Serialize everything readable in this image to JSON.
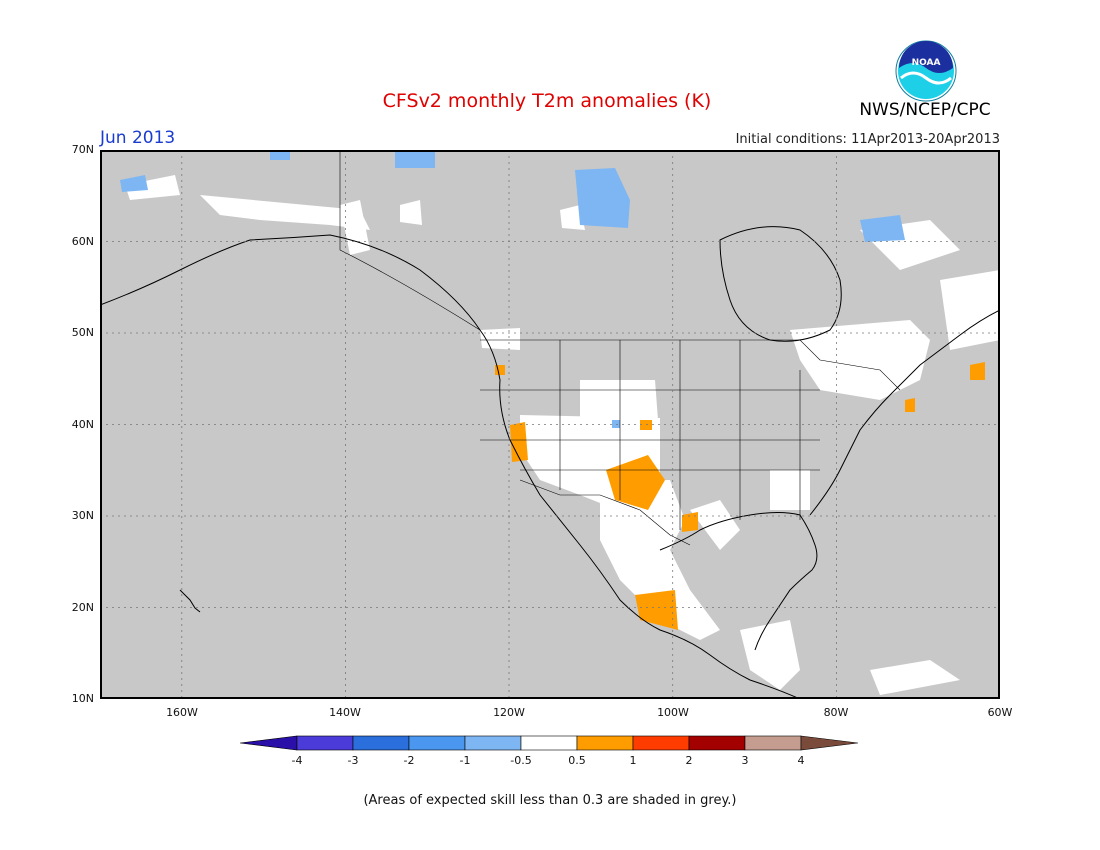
{
  "header": {
    "title": "CFSv2 monthly T2m anomalies (K)",
    "month": "Jun 2013",
    "initial_conditions": "Initial conditions: 11Apr2013-20Apr2013",
    "org": "NWS/NCEP/CPC",
    "logo_text": "NOAA"
  },
  "map": {
    "lat_labels": [
      "70N",
      "60N",
      "50N",
      "40N",
      "30N",
      "20N",
      "10N"
    ],
    "lon_labels": [
      "160W",
      "140W",
      "120W",
      "100W",
      "80W",
      "60W"
    ],
    "extent": {
      "lon_min": -170,
      "lon_max": -60,
      "lat_min": 10,
      "lat_max": 70
    },
    "background_color": "#c8c8c8",
    "land_low_skill_color": "#ffffff"
  },
  "colorbar": {
    "labels": [
      "-4",
      "-3",
      "-2",
      "-1",
      "-0.5",
      "0.5",
      "1",
      "2",
      "3",
      "4"
    ],
    "colors": [
      "#2a0fa8",
      "#4b3bd8",
      "#2a6fdc",
      "#4b97f0",
      "#7db6f3",
      "#ffffff",
      "#ff9d00",
      "#ff3c00",
      "#a30000",
      "#c49d90",
      "#7a4b3a"
    ]
  },
  "footnote": "(Areas of expected skill less than 0.3 are shaded in grey.)"
}
